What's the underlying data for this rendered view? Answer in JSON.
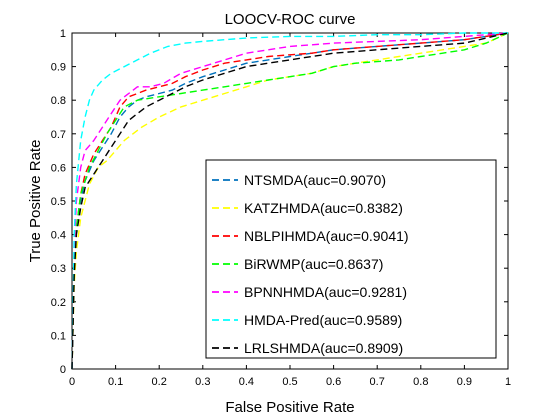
{
  "chart_data": {
    "type": "line",
    "title": "LOOCV-ROC curve",
    "xlabel": "False Positive Rate",
    "ylabel": "True Positive Rate",
    "xlim": [
      0,
      1
    ],
    "ylim": [
      0,
      1
    ],
    "xticks": [
      0,
      0.1,
      0.2,
      0.3,
      0.4,
      0.5,
      0.6,
      0.7,
      0.8,
      0.9,
      1
    ],
    "yticks": [
      0,
      0.1,
      0.2,
      0.3,
      0.4,
      0.5,
      0.6,
      0.7,
      0.8,
      0.9,
      1
    ],
    "xtick_labels": [
      "0",
      "0.1",
      "0.2",
      "0.3",
      "0.4",
      "0.5",
      "0.6",
      "0.7",
      "0.8",
      "0.9",
      "1"
    ],
    "ytick_labels": [
      "0",
      "0.1",
      "0.2",
      "0.3",
      "0.4",
      "0.5",
      "0.6",
      "0.7",
      "0.8",
      "0.9",
      "1"
    ],
    "grid": false,
    "legend_position": "bottom-right",
    "line_style": "dashed",
    "series": [
      {
        "name": "NTSMDA(auc=0.9070)",
        "color": "#0072BD",
        "x": [
          0,
          0.005,
          0.01,
          0.02,
          0.03,
          0.05,
          0.07,
          0.09,
          0.11,
          0.13,
          0.15,
          0.17,
          0.2,
          0.23,
          0.26,
          0.3,
          0.35,
          0.4,
          0.45,
          0.5,
          0.55,
          0.6,
          0.65,
          0.7,
          0.8,
          0.9,
          1
        ],
        "y": [
          0,
          0.3,
          0.42,
          0.5,
          0.56,
          0.62,
          0.66,
          0.7,
          0.75,
          0.78,
          0.8,
          0.81,
          0.82,
          0.83,
          0.85,
          0.87,
          0.89,
          0.91,
          0.92,
          0.93,
          0.94,
          0.95,
          0.955,
          0.96,
          0.97,
          0.98,
          1
        ]
      },
      {
        "name": "KATZHMDA(auc=0.8382)",
        "color": "#FFFF00",
        "x": [
          0,
          0.005,
          0.01,
          0.02,
          0.04,
          0.06,
          0.08,
          0.1,
          0.12,
          0.14,
          0.16,
          0.2,
          0.25,
          0.3,
          0.35,
          0.4,
          0.45,
          0.5,
          0.55,
          0.6,
          0.65,
          0.7,
          0.75,
          0.8,
          0.85,
          0.9,
          0.95,
          1
        ],
        "y": [
          0,
          0.25,
          0.35,
          0.45,
          0.55,
          0.6,
          0.62,
          0.65,
          0.68,
          0.7,
          0.72,
          0.75,
          0.78,
          0.8,
          0.82,
          0.84,
          0.86,
          0.87,
          0.88,
          0.9,
          0.91,
          0.92,
          0.93,
          0.94,
          0.95,
          0.96,
          0.97,
          1
        ]
      },
      {
        "name": "NBLPIHMDA(auc=0.9041)",
        "color": "#FF0000",
        "x": [
          0,
          0.005,
          0.01,
          0.02,
          0.03,
          0.05,
          0.07,
          0.09,
          0.11,
          0.13,
          0.15,
          0.17,
          0.2,
          0.23,
          0.26,
          0.3,
          0.35,
          0.4,
          0.45,
          0.5,
          0.55,
          0.6,
          0.65,
          0.7,
          0.8,
          0.9,
          1
        ],
        "y": [
          0,
          0.3,
          0.42,
          0.52,
          0.58,
          0.64,
          0.68,
          0.72,
          0.78,
          0.81,
          0.82,
          0.83,
          0.84,
          0.85,
          0.87,
          0.89,
          0.91,
          0.92,
          0.93,
          0.935,
          0.94,
          0.95,
          0.955,
          0.96,
          0.97,
          0.98,
          1
        ]
      },
      {
        "name": "BiRWMP(auc=0.8637)",
        "color": "#00FF00",
        "x": [
          0,
          0.005,
          0.01,
          0.02,
          0.04,
          0.06,
          0.08,
          0.1,
          0.12,
          0.15,
          0.2,
          0.25,
          0.3,
          0.35,
          0.4,
          0.45,
          0.5,
          0.55,
          0.6,
          0.65,
          0.7,
          0.75,
          0.8,
          0.85,
          0.9,
          0.95,
          1
        ],
        "y": [
          0,
          0.3,
          0.42,
          0.52,
          0.6,
          0.65,
          0.7,
          0.74,
          0.78,
          0.8,
          0.81,
          0.82,
          0.83,
          0.84,
          0.85,
          0.86,
          0.87,
          0.88,
          0.9,
          0.91,
          0.915,
          0.92,
          0.93,
          0.94,
          0.95,
          0.97,
          1
        ]
      },
      {
        "name": "BPNNHMDA(auc=0.9281)",
        "color": "#FF00FF",
        "x": [
          0,
          0.005,
          0.01,
          0.02,
          0.03,
          0.05,
          0.07,
          0.09,
          0.11,
          0.13,
          0.15,
          0.18,
          0.21,
          0.25,
          0.3,
          0.35,
          0.4,
          0.45,
          0.5,
          0.55,
          0.6,
          0.7,
          0.8,
          0.9,
          1
        ],
        "y": [
          0,
          0.35,
          0.5,
          0.6,
          0.65,
          0.68,
          0.72,
          0.76,
          0.8,
          0.82,
          0.84,
          0.84,
          0.85,
          0.88,
          0.9,
          0.92,
          0.94,
          0.95,
          0.96,
          0.965,
          0.97,
          0.975,
          0.98,
          0.99,
          1
        ]
      },
      {
        "name": "HMDA-Pred(auc=0.9589)",
        "color": "#00FFFF",
        "x": [
          0,
          0.005,
          0.01,
          0.02,
          0.03,
          0.04,
          0.05,
          0.07,
          0.09,
          0.12,
          0.15,
          0.18,
          0.22,
          0.26,
          0.3,
          0.35,
          0.4,
          0.5,
          0.6,
          0.7,
          0.8,
          0.9,
          1
        ],
        "y": [
          0,
          0.4,
          0.55,
          0.68,
          0.75,
          0.8,
          0.83,
          0.86,
          0.88,
          0.9,
          0.92,
          0.94,
          0.96,
          0.97,
          0.975,
          0.98,
          0.985,
          0.99,
          0.99,
          0.995,
          0.995,
          1,
          1
        ]
      },
      {
        "name": "LRLSHMDA(auc=0.8909)",
        "color": "#000000",
        "x": [
          0,
          0.005,
          0.01,
          0.02,
          0.03,
          0.05,
          0.07,
          0.09,
          0.11,
          0.13,
          0.15,
          0.17,
          0.2,
          0.23,
          0.26,
          0.3,
          0.35,
          0.4,
          0.45,
          0.5,
          0.55,
          0.6,
          0.7,
          0.8,
          0.9,
          1
        ],
        "y": [
          0,
          0.28,
          0.4,
          0.48,
          0.54,
          0.58,
          0.62,
          0.66,
          0.7,
          0.74,
          0.76,
          0.78,
          0.8,
          0.82,
          0.84,
          0.86,
          0.88,
          0.9,
          0.91,
          0.92,
          0.93,
          0.94,
          0.95,
          0.96,
          0.97,
          1
        ]
      }
    ]
  }
}
